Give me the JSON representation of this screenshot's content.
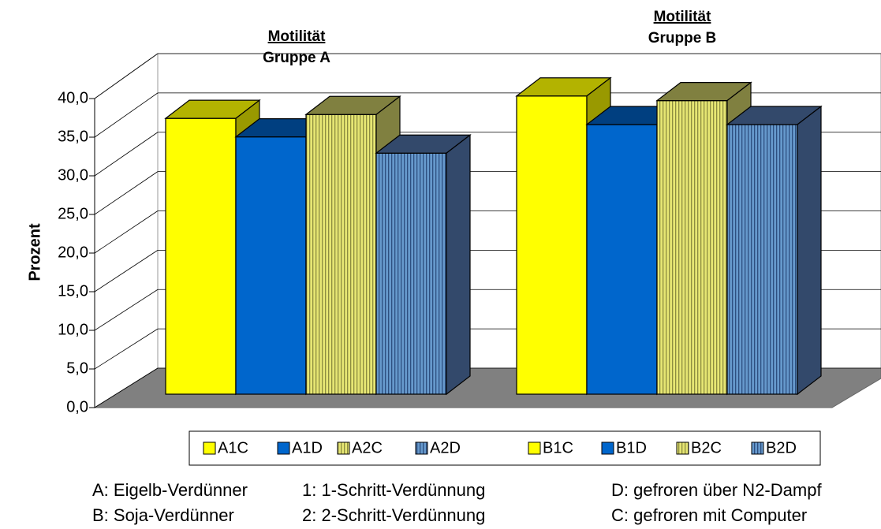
{
  "chart_data": {
    "type": "bar3d",
    "y_label": "Prozent",
    "groups": [
      {
        "title": "Motilität",
        "subtitle": "Gruppe A"
      },
      {
        "title": "Motilität",
        "subtitle": "Gruppe B"
      }
    ],
    "series": [
      {
        "name": "A1C",
        "group": 0,
        "color": "#ffff00",
        "side": "#999900",
        "value": 35.7
      },
      {
        "name": "A1D",
        "group": 0,
        "color": "#0066cc",
        "side": "#003f80",
        "value": 33.3
      },
      {
        "name": "A2C",
        "group": 0,
        "color": "#e6e673",
        "side": "#808040",
        "pattern": "vertical-lines",
        "value": 36.2
      },
      {
        "name": "A2D",
        "group": 0,
        "color": "#6699cc",
        "side": "#33496b",
        "pattern": "vertical-lines",
        "value": 31.2
      },
      {
        "name": "B1C",
        "group": 1,
        "color": "#ffff00",
        "side": "#999900",
        "value": 38.6
      },
      {
        "name": "B1D",
        "group": 1,
        "color": "#0066cc",
        "side": "#003f80",
        "value": 34.9
      },
      {
        "name": "B2C",
        "group": 1,
        "color": "#e6e673",
        "side": "#808040",
        "pattern": "vertical-lines",
        "value": 38.0
      },
      {
        "name": "B2D",
        "group": 1,
        "color": "#6699cc",
        "side": "#33496b",
        "pattern": "vertical-lines",
        "value": 34.9
      }
    ],
    "ylim": [
      0,
      40
    ],
    "yticks": [
      {
        "value": 0,
        "label": "0,0"
      },
      {
        "value": 5,
        "label": "5,0"
      },
      {
        "value": 10,
        "label": "10,0"
      },
      {
        "value": 15,
        "label": "15,0"
      },
      {
        "value": 20,
        "label": "20,0"
      },
      {
        "value": 25,
        "label": "25,0"
      },
      {
        "value": 30,
        "label": "30,0"
      },
      {
        "value": 35,
        "label": "35,0"
      },
      {
        "value": 40,
        "label": "40,0"
      }
    ],
    "grid": true,
    "notes": [
      [
        "A: Eigelb-Verdünner",
        "1: 1-Schritt-Verdünnung",
        "D: gefroren über N2-Dampf"
      ],
      [
        "B: Soja-Verdünner",
        "2: 2-Schritt-Verdünnung",
        "C: gefroren mit Computer"
      ]
    ]
  }
}
